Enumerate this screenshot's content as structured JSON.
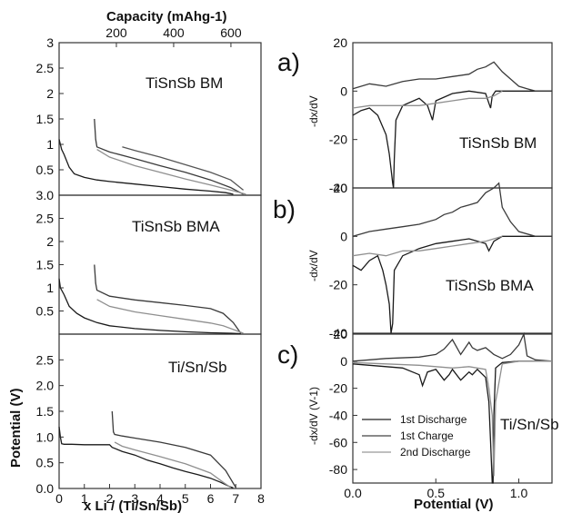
{
  "figure": {
    "panel_labels": [
      "a)",
      "b)",
      "c)"
    ]
  },
  "chart_data": [
    {
      "id": "left_top",
      "type": "line",
      "series_label": "TiSnSb  BM",
      "x_axis_top_label": "Capacity (mAhg-1)",
      "x_axis_top_ticks": [
        200,
        400,
        600
      ],
      "x_axis_top_ticks_text": [
        "200",
        "400",
        "600"
      ],
      "xlim": [
        0,
        8
      ],
      "ylim": [
        0,
        3
      ],
      "y_ticks_text": [
        "0.5",
        "1",
        "1.5",
        "2",
        "2.5",
        "3"
      ],
      "y_ticks": [
        0.5,
        1,
        1.5,
        2,
        2.5,
        3
      ],
      "series": [
        {
          "x": [
            0,
            0.1,
            0.2,
            0.4,
            0.6,
            1.0,
            1.5,
            2.0,
            3.0,
            4.0,
            5.0,
            6.0,
            6.6,
            6.9
          ],
          "y": [
            1.1,
            0.9,
            0.8,
            0.55,
            0.42,
            0.35,
            0.3,
            0.27,
            0.22,
            0.17,
            0.12,
            0.08,
            0.05,
            0.02
          ]
        },
        {
          "x": [
            1.4,
            1.45,
            1.5,
            2,
            3,
            4,
            5,
            6,
            6.8,
            7.3
          ],
          "y": [
            1.5,
            1.1,
            0.95,
            0.85,
            0.72,
            0.58,
            0.45,
            0.3,
            0.15,
            0.02
          ]
        },
        {
          "x": [
            1.5,
            2,
            3,
            4,
            5,
            6,
            6.8,
            7.4
          ],
          "y": [
            0.9,
            0.75,
            0.58,
            0.45,
            0.32,
            0.2,
            0.1,
            0.02
          ]
        },
        {
          "x": [
            2.5,
            3,
            4,
            5,
            6,
            6.8,
            7.3
          ],
          "y": [
            0.95,
            0.88,
            0.75,
            0.6,
            0.45,
            0.3,
            0.1
          ]
        }
      ]
    },
    {
      "id": "left_middle",
      "type": "line",
      "series_label": "TiSnSb BMA",
      "xlim": [
        0,
        8
      ],
      "ylim": [
        0,
        3
      ],
      "y_ticks_text": [
        "0.5",
        "1",
        "1.5",
        "2",
        "2.5",
        "3.0"
      ],
      "y_ticks": [
        0.5,
        1,
        1.5,
        2,
        2.5,
        3
      ],
      "series": [
        {
          "x": [
            0,
            0.05,
            0.2,
            0.4,
            0.7,
            1.0,
            1.5,
            2.0,
            3.0,
            4.0,
            5.0,
            6.0,
            6.8,
            7.2
          ],
          "y": [
            1.2,
            1.0,
            0.85,
            0.6,
            0.45,
            0.35,
            0.25,
            0.18,
            0.12,
            0.08,
            0.05,
            0.03,
            0.02,
            0.01
          ]
        },
        {
          "x": [
            1.4,
            1.45,
            1.5,
            2,
            3,
            4,
            5,
            6,
            6.5,
            6.9,
            7.2
          ],
          "y": [
            1.5,
            1.1,
            0.95,
            0.82,
            0.74,
            0.68,
            0.62,
            0.55,
            0.45,
            0.25,
            0.02
          ]
        },
        {
          "x": [
            1.5,
            2,
            3,
            4,
            5,
            6,
            6.5,
            6.9,
            7.3
          ],
          "y": [
            0.75,
            0.6,
            0.48,
            0.4,
            0.32,
            0.24,
            0.18,
            0.1,
            0.02
          ]
        }
      ]
    },
    {
      "id": "left_bottom",
      "type": "line",
      "series_label": "Ti/Sn/Sb",
      "xlabel": "x Li / (Ti/Sn/Sb)",
      "ylabel": "Potential (V)",
      "xlim": [
        0,
        8
      ],
      "ylim": [
        0,
        3
      ],
      "x_ticks": [
        0,
        1,
        2,
        3,
        4,
        5,
        6,
        7,
        8
      ],
      "x_ticks_text": [
        "0",
        "1",
        "2",
        "3",
        "4",
        "5",
        "6",
        "7",
        "8"
      ],
      "y_ticks": [
        0,
        0.5,
        1,
        1.5,
        2,
        2.5
      ],
      "y_ticks_text": [
        "0.0",
        "0.5",
        "1.0",
        "1.5",
        "2.0",
        "2.5"
      ],
      "series": [
        {
          "x": [
            0,
            0.05,
            0.1,
            0.2,
            0.5,
            1.0,
            2.0,
            2.1,
            2.5,
            3.0,
            3.5,
            4.0,
            4.5,
            5.0,
            5.5,
            6.0,
            6.4,
            6.7,
            6.9
          ],
          "y": [
            1.2,
            1.0,
            0.87,
            0.86,
            0.86,
            0.85,
            0.85,
            0.8,
            0.72,
            0.65,
            0.55,
            0.48,
            0.4,
            0.33,
            0.27,
            0.2,
            0.12,
            0.05,
            0.01
          ]
        },
        {
          "x": [
            2.1,
            2.15,
            2.2,
            2.5,
            3,
            4,
            5,
            6,
            6.6,
            7.0
          ],
          "y": [
            1.5,
            1.1,
            1.05,
            1.02,
            0.98,
            0.9,
            0.8,
            0.65,
            0.35,
            0.02
          ]
        },
        {
          "x": [
            2.2,
            2.5,
            3,
            4,
            5,
            6,
            6.5,
            6.8
          ],
          "y": [
            0.9,
            0.82,
            0.75,
            0.62,
            0.48,
            0.3,
            0.12,
            0.02
          ]
        }
      ]
    },
    {
      "id": "right_a",
      "type": "line",
      "panel_label": "a)",
      "series_label": "TiSnSb  BM",
      "ylabel": "-dx/dV",
      "xlim": [
        0,
        1.2
      ],
      "ylim": [
        -40,
        20
      ],
      "y_ticks": [
        20,
        0,
        -20,
        -40
      ],
      "y_ticks_text": [
        "20",
        "0",
        "-20",
        "-40"
      ],
      "series": [
        {
          "x": [
            0.0,
            0.05,
            0.1,
            0.15,
            0.2,
            0.22,
            0.24,
            0.245,
            0.25,
            0.26,
            0.3,
            0.4,
            0.45,
            0.48,
            0.5,
            0.6,
            0.7,
            0.8,
            0.82,
            0.83,
            0.84,
            0.86,
            0.9,
            1.0,
            1.1,
            1.2
          ],
          "y": [
            -10,
            -8,
            -7,
            -10,
            -18,
            -26,
            -38,
            -40,
            -28,
            -12,
            -6,
            -3,
            -6,
            -12,
            -4,
            -1,
            0,
            -1,
            -5,
            -7,
            -2,
            0,
            0,
            0,
            0,
            0
          ]
        },
        {
          "x": [
            0.0,
            0.1,
            0.2,
            0.3,
            0.4,
            0.5,
            0.6,
            0.7,
            0.75,
            0.8,
            0.85,
            0.9,
            0.95,
            1.0,
            1.05,
            1.1,
            1.2
          ],
          "y": [
            1,
            3,
            2,
            4,
            5,
            5,
            6,
            7,
            9,
            10,
            12,
            8,
            5,
            2,
            1,
            0,
            0
          ]
        },
        {
          "x": [
            0.0,
            0.1,
            0.2,
            0.3,
            0.4,
            0.5,
            0.6,
            0.7,
            0.8,
            0.85,
            0.9
          ],
          "y": [
            -7,
            -6,
            -6,
            -6,
            -6,
            -5,
            -4,
            -3,
            -3,
            -2,
            0
          ]
        }
      ]
    },
    {
      "id": "right_b",
      "type": "line",
      "panel_label": "b)",
      "series_label": "TiSnSb BMA",
      "ylabel": "-dx/dV",
      "xlim": [
        0,
        1.2
      ],
      "ylim": [
        -40,
        20
      ],
      "y_ticks": [
        40,
        20,
        0,
        -20,
        -40
      ],
      "y_ticks_text": [
        "40",
        "20",
        "0",
        "-20",
        "-40"
      ],
      "series": [
        {
          "x": [
            0.0,
            0.05,
            0.1,
            0.15,
            0.18,
            0.2,
            0.22,
            0.23,
            0.24,
            0.25,
            0.3,
            0.4,
            0.5,
            0.6,
            0.7,
            0.8,
            0.82,
            0.85,
            0.9,
            1.0,
            1.1,
            1.2
          ],
          "y": [
            -12,
            -14,
            -10,
            -8,
            -14,
            -20,
            -28,
            -40,
            -36,
            -14,
            -8,
            -5,
            -3,
            -2,
            -1,
            -3,
            -6,
            -2,
            0,
            0,
            0,
            0
          ]
        },
        {
          "x": [
            0.0,
            0.1,
            0.2,
            0.3,
            0.4,
            0.5,
            0.55,
            0.6,
            0.65,
            0.7,
            0.75,
            0.8,
            0.85,
            0.88,
            0.9,
            0.95,
            1.0,
            1.1,
            1.2
          ],
          "y": [
            0,
            2,
            3,
            4,
            5,
            7,
            9,
            10,
            12,
            13,
            14,
            18,
            20,
            22,
            12,
            6,
            2,
            0,
            0
          ]
        },
        {
          "x": [
            0.0,
            0.1,
            0.2,
            0.3,
            0.4,
            0.5,
            0.6,
            0.7,
            0.8,
            0.9
          ],
          "y": [
            -8,
            -7,
            -8,
            -6,
            -6,
            -5,
            -4,
            -3,
            -2,
            0
          ]
        }
      ]
    },
    {
      "id": "right_c",
      "type": "line",
      "panel_label": "c)",
      "series_label": "Ti/Sn/Sb",
      "xlabel": "Potential (V)",
      "ylabel": "-dx/dV (V-1)",
      "xlim": [
        0,
        1.2
      ],
      "ylim": [
        -90,
        20
      ],
      "x_ticks": [
        0.0,
        0.5,
        1.0
      ],
      "x_ticks_text": [
        "0.0",
        "0.5",
        "1.0"
      ],
      "y_ticks": [
        20,
        0,
        -20,
        -40,
        -60,
        -80
      ],
      "y_ticks_text": [
        "20",
        "0",
        "-20",
        "-40",
        "-60",
        "-80"
      ],
      "series": [
        {
          "name": "1st Discharge",
          "x": [
            0.0,
            0.1,
            0.2,
            0.3,
            0.4,
            0.42,
            0.45,
            0.5,
            0.55,
            0.58,
            0.6,
            0.65,
            0.7,
            0.72,
            0.75,
            0.8,
            0.82,
            0.83,
            0.84,
            0.845,
            0.85,
            0.86,
            0.9,
            1.0,
            1.1,
            1.2
          ],
          "y": [
            -2,
            -3,
            -4,
            -5,
            -10,
            -18,
            -8,
            -6,
            -14,
            -10,
            -6,
            -14,
            -8,
            -10,
            -6,
            -12,
            -30,
            -60,
            -90,
            -90,
            -40,
            -5,
            -1,
            0,
            0,
            0
          ]
        },
        {
          "name": "1st Charge",
          "x": [
            0.0,
            0.2,
            0.4,
            0.5,
            0.55,
            0.6,
            0.65,
            0.7,
            0.72,
            0.75,
            0.8,
            0.85,
            0.9,
            0.95,
            1.0,
            1.03,
            1.05,
            1.1,
            1.2
          ],
          "y": [
            0,
            2,
            3,
            5,
            9,
            16,
            5,
            14,
            10,
            8,
            10,
            5,
            2,
            5,
            12,
            20,
            4,
            1,
            0
          ]
        },
        {
          "name": "2nd Discharge",
          "x": [
            0.0,
            0.2,
            0.4,
            0.5,
            0.6,
            0.7,
            0.8,
            0.82,
            0.84,
            0.85,
            0.86,
            0.9,
            1.0,
            1.2
          ],
          "y": [
            -1,
            -2,
            -3,
            -4,
            -5,
            -4,
            -6,
            -20,
            -40,
            -85,
            -30,
            -2,
            0,
            0
          ]
        }
      ]
    }
  ]
}
